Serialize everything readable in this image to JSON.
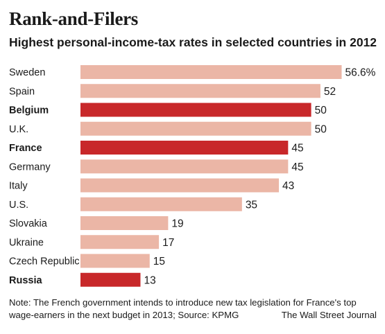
{
  "title": "Rank-and-Filers",
  "subtitle": "Highest personal-income-tax rates in selected countries in 2012",
  "note": "Note: The French government intends to introduce new tax legislation for France's top wage-earners in the next budget in 2013; Source: KPMG",
  "source": "The Wall Street Journal",
  "colors": {
    "bar": "#ebb6a6",
    "highlight": "#c8282a"
  },
  "chart_data": {
    "type": "bar",
    "orientation": "horizontal",
    "title": "Rank-and-Filers",
    "subtitle": "Highest personal-income-tax rates in selected countries in 2012",
    "xlabel": "",
    "ylabel": "",
    "xlim": [
      0,
      57
    ],
    "categories": [
      "Sweden",
      "Spain",
      "Belgium",
      "U.K.",
      "France",
      "Germany",
      "Italy",
      "U.S.",
      "Slovakia",
      "Ukraine",
      "Czech Republic",
      "Russia"
    ],
    "values": [
      56.6,
      52,
      50,
      50,
      45,
      45,
      43,
      35,
      19,
      17,
      15,
      13
    ],
    "value_labels": [
      "56.6%",
      "52",
      "50",
      "50",
      "45",
      "45",
      "43",
      "35",
      "19",
      "17",
      "15",
      "13"
    ],
    "highlighted": [
      false,
      false,
      true,
      false,
      true,
      false,
      false,
      false,
      false,
      false,
      false,
      true
    ],
    "grid": false,
    "legend": "none"
  }
}
